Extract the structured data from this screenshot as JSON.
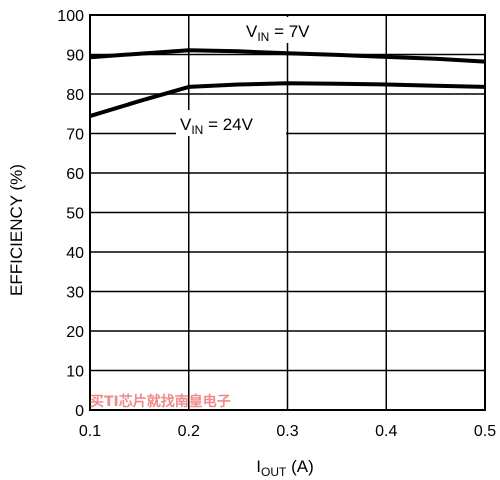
{
  "chart_data": {
    "type": "line",
    "xlabel": {
      "main": "I",
      "sub": "OUT",
      "rest": " (A)"
    },
    "ylabel": "EFFICIENCY (%)",
    "xlim": [
      0.1,
      0.5
    ],
    "ylim": [
      0,
      100
    ],
    "xticks": [
      "0.1",
      "0.2",
      "0.3",
      "0.4",
      "0.5"
    ],
    "yticks": [
      "0",
      "10",
      "20",
      "30",
      "40",
      "50",
      "60",
      "70",
      "80",
      "90",
      "100"
    ],
    "grid": true,
    "series": [
      {
        "label": {
          "main": "V",
          "sub": "IN",
          "rest": " = 7V"
        },
        "x": [
          0.1,
          0.15,
          0.2,
          0.25,
          0.3,
          0.35,
          0.4,
          0.45,
          0.5
        ],
        "y": [
          89.3,
          90.2,
          91.1,
          90.8,
          90.3,
          89.9,
          89.4,
          88.9,
          88.2
        ]
      },
      {
        "label": {
          "main": "V",
          "sub": "IN",
          "rest": " = 24V"
        },
        "x": [
          0.1,
          0.15,
          0.2,
          0.25,
          0.3,
          0.35,
          0.4,
          0.45,
          0.5
        ],
        "y": [
          74.4,
          78.2,
          81.8,
          82.4,
          82.7,
          82.6,
          82.4,
          82.1,
          81.8
        ]
      }
    ]
  },
  "watermark": "买TI芯片就找南皇电子"
}
